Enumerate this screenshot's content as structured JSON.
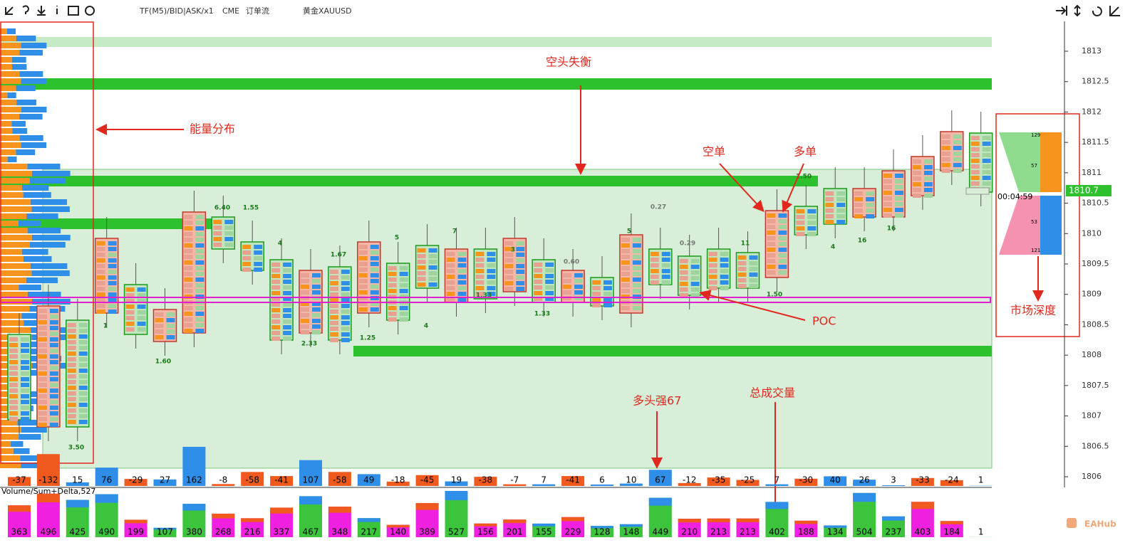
{
  "toolbar": {
    "timeframe": "TF(M5)/BID|ASK/x1",
    "exchange": "CME",
    "mode": "订单流",
    "symbol": "黄金XAUUSD"
  },
  "chart_data": {
    "type": "footprint",
    "yticks": [
      1806.0,
      1806.5,
      1807.0,
      1807.5,
      1808.0,
      1808.5,
      1809.0,
      1809.5,
      1810.0,
      1810.5,
      1811.0,
      1811.5,
      1812.0,
      1812.5,
      1813.0
    ],
    "ylim": [
      1805.93,
      1813.5
    ],
    "current_price": "1810.7",
    "timer": "00:04:59",
    "delta": [
      -37,
      -132,
      15,
      76,
      -29,
      27,
      162,
      -8,
      -58,
      -41,
      107,
      -58,
      49,
      -18,
      -45,
      19,
      -38,
      -7,
      7,
      -41,
      6,
      10,
      67,
      -12,
      -35,
      -25,
      7,
      -30,
      40,
      26,
      3,
      -33,
      -24,
      1
    ],
    "volume_title": "Volume/Sum+Delta,527",
    "volume": [
      363,
      496,
      425,
      490,
      199,
      107,
      380,
      268,
      216,
      337,
      467,
      348,
      217,
      140,
      389,
      527,
      156,
      201,
      155,
      229,
      128,
      148,
      449,
      210,
      213,
      213,
      402,
      188,
      134,
      504,
      237,
      403,
      184,
      1
    ],
    "candle_labels": [
      "6.40",
      "1.55",
      "1.67",
      "2.33",
      "1.60",
      "3.50",
      "1.25",
      "1.33",
      "1.33",
      "0.60",
      "0.27",
      "0.29",
      "1.50",
      "1.50",
      "16",
      "16",
      "4",
      "5",
      "7",
      "3",
      "5",
      "11",
      "4",
      "4",
      "1"
    ],
    "depth_labels": [
      "129",
      "57",
      "53",
      "121"
    ]
  },
  "annotations": {
    "sell_imbalance": "空头失衡",
    "energy": "能量分布",
    "short": "空单",
    "long": "多单",
    "poc": "POC",
    "bull": "多头强67",
    "total_volume": "总成交量",
    "depth": "市场深度"
  },
  "watermark": "EAHub"
}
